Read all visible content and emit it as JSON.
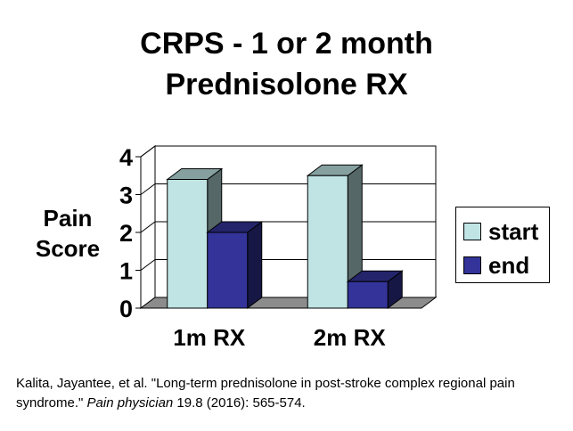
{
  "title_lines": [
    "CRPS - 1 or 2 month",
    "Prednisolone RX"
  ],
  "chart_data": {
    "type": "bar",
    "categories": [
      "1m RX",
      "2m RX"
    ],
    "series": [
      {
        "name": "start",
        "values": [
          3.4,
          3.5
        ],
        "color": "#c0e4e4"
      },
      {
        "name": "end",
        "values": [
          2.0,
          0.7
        ],
        "color": "#333399"
      }
    ],
    "ylabel_lines": [
      "Pain",
      "Score"
    ],
    "xlabel": "",
    "ylim": [
      0,
      4
    ],
    "yticks": [
      "0",
      "1",
      "2",
      "3",
      "4"
    ],
    "grid": true,
    "style": "3d",
    "legend_position": "right"
  },
  "citation": {
    "before": "Kalita, Jayantee, et al. \"Long-term prednisolone in post-stroke complex regional pain syndrome.\" ",
    "journal": "Pain physician",
    "after": " 19.8 (2016): 565-574."
  }
}
